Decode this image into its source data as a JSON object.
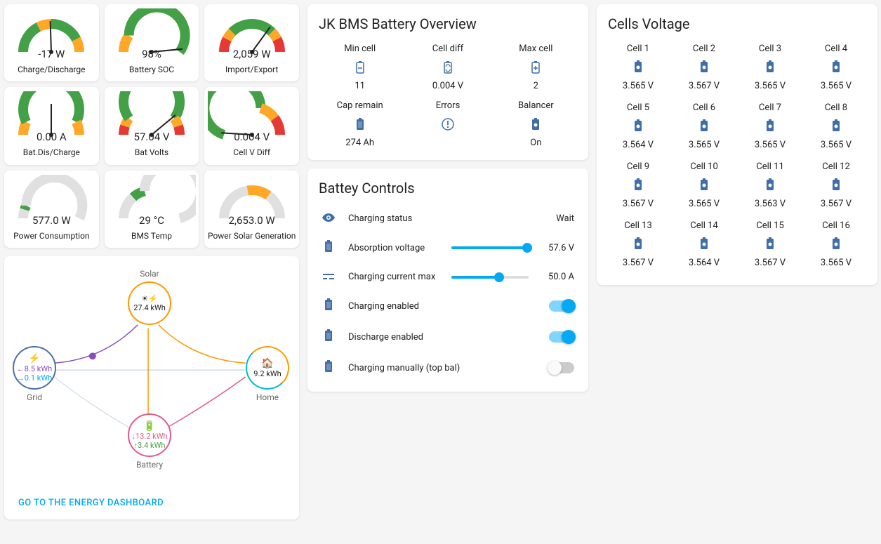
{
  "colors": {
    "green": "#43a047",
    "orange": "#ffa726",
    "red": "#e53935",
    "grey": "#e0e0e0",
    "blue": "#03a9f4",
    "iconBlue": "#3f6ea8",
    "solar": "#ff9800",
    "grid": "#4a6fa5",
    "home": "#00bcd4",
    "battery": "#e05a8a",
    "purple": "#8a4dbf"
  },
  "gauges": [
    {
      "value": "-17 W",
      "label": "Charge/Discharge",
      "segments": [
        {
          "c": "green",
          "f": 0.35
        },
        {
          "c": "orange",
          "f": 0.15
        },
        {
          "c": "green",
          "f": 0.35
        },
        {
          "c": "orange",
          "f": 0.15
        }
      ],
      "needle": 0.49
    },
    {
      "value": "98%",
      "label": "Battery SOC",
      "segments": [
        {
          "c": "orange",
          "f": 0.2
        },
        {
          "c": "green",
          "f": 0.8
        }
      ],
      "needle": 0.97
    },
    {
      "value": "2,059 W",
      "label": "Import/Export",
      "segments": [
        {
          "c": "red",
          "f": 0.15
        },
        {
          "c": "orange",
          "f": 0.1
        },
        {
          "c": "green",
          "f": 0.5
        },
        {
          "c": "orange",
          "f": 0.1
        },
        {
          "c": "red",
          "f": 0.15
        }
      ],
      "needle": 0.7
    },
    {
      "value": "0.00 A",
      "label": "Bat.Dis/Charge",
      "segments": [
        {
          "c": "orange",
          "f": 0.15
        },
        {
          "c": "green",
          "f": 0.7
        },
        {
          "c": "orange",
          "f": 0.15
        }
      ],
      "needle": 0.5
    },
    {
      "value": "57.04 V",
      "label": "Bat Volts",
      "segments": [
        {
          "c": "red",
          "f": 0.1
        },
        {
          "c": "orange",
          "f": 0.1
        },
        {
          "c": "green",
          "f": 0.6
        },
        {
          "c": "orange",
          "f": 0.1
        },
        {
          "c": "red",
          "f": 0.1
        }
      ],
      "needle": 0.78
    },
    {
      "value": "0.004 V",
      "label": "Cell V Diff",
      "segments": [
        {
          "c": "green",
          "f": 0.6
        },
        {
          "c": "orange",
          "f": 0.2
        },
        {
          "c": "red",
          "f": 0.2
        }
      ],
      "needle": 0.02
    },
    {
      "value": "577.0 W",
      "label": "Power Consumption",
      "segments": [
        {
          "c": "grey",
          "f": 0.1
        },
        {
          "c": "green",
          "f": 0.05
        },
        {
          "c": "grey",
          "f": 0.85
        }
      ],
      "needle": null
    },
    {
      "value": "29 °C",
      "label": "BMS Temp",
      "segments": [
        {
          "c": "grey",
          "f": 0.27
        },
        {
          "c": "green",
          "f": 0.15
        },
        {
          "c": "grey",
          "f": 0.58
        }
      ],
      "needle": null
    },
    {
      "value": "2,653.0 W",
      "label": "Power Solar Generation",
      "segments": [
        {
          "c": "grey",
          "f": 0.45
        },
        {
          "c": "orange",
          "f": 0.25
        },
        {
          "c": "grey",
          "f": 0.3
        }
      ],
      "needle": null
    }
  ],
  "bms": {
    "title": "JK BMS Battery Overview",
    "items": [
      {
        "label": "Min cell",
        "icon": "bat-minus",
        "value": "11"
      },
      {
        "label": "Cell diff",
        "icon": "bat-sync",
        "value": "0.004 V"
      },
      {
        "label": "Max cell",
        "icon": "bat-plus",
        "value": "2"
      },
      {
        "label": "Cap remain",
        "icon": "bat",
        "value": "274 Ah"
      },
      {
        "label": "Errors",
        "icon": "alert",
        "value": ""
      },
      {
        "label": "Balancer",
        "icon": "bat-heart",
        "value": "On"
      }
    ]
  },
  "controls": {
    "title": "Battey Controls",
    "rows": [
      {
        "type": "status",
        "icon": "eye",
        "label": "Charging status",
        "value": "Wait"
      },
      {
        "type": "slider",
        "icon": "bat",
        "label": "Absorption voltage",
        "value": "57.6 V",
        "pct": 0.98
      },
      {
        "type": "slider",
        "icon": "current",
        "label": "Charging current max",
        "value": "50.0 A",
        "pct": 0.62
      },
      {
        "type": "switch",
        "icon": "bat",
        "label": "Charging enabled",
        "on": true
      },
      {
        "type": "switch",
        "icon": "bat",
        "label": "Discharge enabled",
        "on": true
      },
      {
        "type": "switch",
        "icon": "bat",
        "label": "Charging manually (top bal)",
        "on": false
      }
    ]
  },
  "cells": {
    "title": "Cells Voltage",
    "items": [
      {
        "label": "Cell 1",
        "value": "3.565 V"
      },
      {
        "label": "Cell 2",
        "value": "3.567 V"
      },
      {
        "label": "Cell 3",
        "value": "3.565 V"
      },
      {
        "label": "Cell 4",
        "value": "3.565 V"
      },
      {
        "label": "Cell 5",
        "value": "3.564 V"
      },
      {
        "label": "Cell 6",
        "value": "3.565 V"
      },
      {
        "label": "Cell 7",
        "value": "3.565 V"
      },
      {
        "label": "Cell 8",
        "value": "3.565 V"
      },
      {
        "label": "Cell 9",
        "value": "3.567 V"
      },
      {
        "label": "Cell 10",
        "value": "3.565 V"
      },
      {
        "label": "Cell 11",
        "value": "3.563 V"
      },
      {
        "label": "Cell 12",
        "value": "3.567 V"
      },
      {
        "label": "Cell 13",
        "value": "3.567 V"
      },
      {
        "label": "Cell 14",
        "value": "3.564 V"
      },
      {
        "label": "Cell 15",
        "value": "3.567 V"
      },
      {
        "label": "Cell 16",
        "value": "3.565 V"
      }
    ]
  },
  "energy": {
    "link": "GO TO THE ENERGY DASHBOARD",
    "solar": {
      "label": "Solar",
      "value": "27.4 kWh"
    },
    "grid": {
      "label": "Grid",
      "out": "←8.5 kWh",
      "in": "→0.1 kWh"
    },
    "home": {
      "label": "Home",
      "value": "9.2 kWh"
    },
    "battery": {
      "label": "Battery",
      "down": "↓13.2 kWh",
      "up": "↑3.4 kWh"
    }
  }
}
